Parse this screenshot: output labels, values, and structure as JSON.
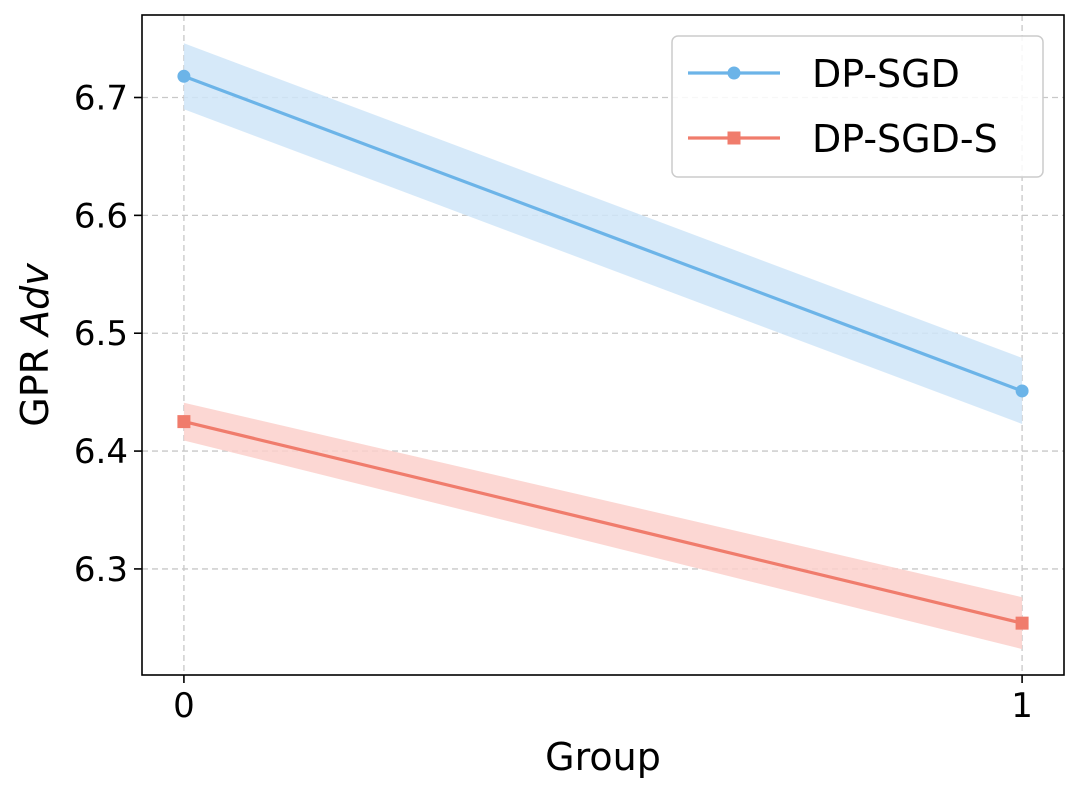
{
  "chart_data": {
    "type": "line",
    "title": "",
    "xlabel": "Group",
    "ylabel_prefix": "GPR",
    "ylabel_italic": "Adv",
    "x": [
      0,
      1
    ],
    "x_ticks": [
      "0",
      "1"
    ],
    "xlim": [
      -0.05,
      1.05
    ],
    "ylim": [
      6.21,
      6.77
    ],
    "y_ticks": [
      6.3,
      6.4,
      6.5,
      6.6,
      6.7
    ],
    "y_tick_labels": [
      "6.3",
      "6.4",
      "6.5",
      "6.6",
      "6.7"
    ],
    "grid": true,
    "legend_position": "top-right",
    "series": [
      {
        "name": "DP-SGD",
        "values": [
          6.718,
          6.451
        ],
        "band_lower": [
          6.69,
          6.423
        ],
        "band_upper": [
          6.746,
          6.479
        ],
        "marker": "circle",
        "color": "#6cb4e8",
        "band_color": "#cfe5f8"
      },
      {
        "name": "DP-SGD-S",
        "values": [
          6.425,
          6.254
        ],
        "band_lower": [
          6.409,
          6.232
        ],
        "band_upper": [
          6.441,
          6.276
        ],
        "marker": "square",
        "color": "#f07c6c",
        "band_color": "#fbd0cb"
      }
    ]
  }
}
